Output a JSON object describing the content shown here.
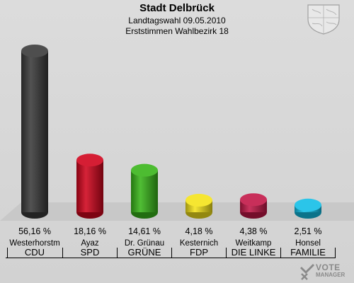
{
  "header": {
    "title": "Stadt Delbrück",
    "subtitle1": "Landtagswahl 09.05.2010",
    "subtitle2": "Erststimmen Wahlbezirk 18"
  },
  "logo": {
    "line1": "VOTE",
    "line2": "MANAGER"
  },
  "crest_icon": "coat-of-arms-icon",
  "chart_data": {
    "type": "bar",
    "title": "Stadt Delbrück",
    "categories": [
      "Westerhorstm",
      "Ayaz",
      "Dr. Grünau",
      "Kesternich",
      "Weitkamp",
      "Honsel"
    ],
    "parties": [
      "CDU",
      "SPD",
      "GRÜNE",
      "FDP",
      "DIE LINKE",
      "FAMILIE"
    ],
    "values": [
      56.16,
      18.16,
      14.61,
      4.18,
      4.38,
      2.51
    ],
    "value_labels": [
      "56,16 %",
      "18,16 %",
      "14,61 %",
      "4,18 %",
      "4,38 %",
      "2,51 %"
    ],
    "colors": [
      "#3a3a3a",
      "#d0051d",
      "#39b51a",
      "#f5e31a",
      "#c21848",
      "#13bfe6"
    ],
    "ylim": [
      0,
      56.16
    ],
    "grid": false,
    "xlabel": "",
    "ylabel": ""
  }
}
